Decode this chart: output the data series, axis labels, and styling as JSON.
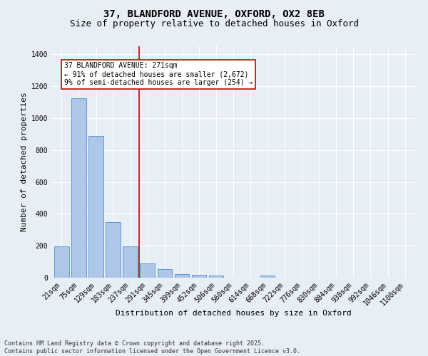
{
  "title1": "37, BLANDFORD AVENUE, OXFORD, OX2 8EB",
  "title2": "Size of property relative to detached houses in Oxford",
  "xlabel": "Distribution of detached houses by size in Oxford",
  "ylabel": "Number of detached properties",
  "bar_labels": [
    "21sqm",
    "75sqm",
    "129sqm",
    "183sqm",
    "237sqm",
    "291sqm",
    "345sqm",
    "399sqm",
    "452sqm",
    "506sqm",
    "560sqm",
    "614sqm",
    "668sqm",
    "722sqm",
    "776sqm",
    "830sqm",
    "884sqm",
    "938sqm",
    "992sqm",
    "1046sqm",
    "1100sqm"
  ],
  "bar_values": [
    195,
    1125,
    890,
    350,
    195,
    90,
    55,
    22,
    18,
    13,
    0,
    0,
    13,
    0,
    0,
    0,
    0,
    0,
    0,
    0,
    0
  ],
  "bar_color": "#aec6e8",
  "bar_edge_color": "#5b9bd5",
  "bg_color": "#e8eef5",
  "grid_color": "#ffffff",
  "vline_x": 4.5,
  "vline_color": "#cc0000",
  "annotation_text": "37 BLANDFORD AVENUE: 271sqm\n← 91% of detached houses are smaller (2,672)\n9% of semi-detached houses are larger (254) →",
  "annotation_box_color": "#ffffff",
  "annotation_box_edge": "#cc0000",
  "ylim": [
    0,
    1450
  ],
  "yticks": [
    0,
    200,
    400,
    600,
    800,
    1000,
    1200,
    1400
  ],
  "footer_text": "Contains HM Land Registry data © Crown copyright and database right 2025.\nContains public sector information licensed under the Open Government Licence v3.0.",
  "title_fontsize": 10,
  "subtitle_fontsize": 9,
  "axis_label_fontsize": 8,
  "tick_fontsize": 7,
  "annotation_fontsize": 7,
  "footer_fontsize": 6
}
